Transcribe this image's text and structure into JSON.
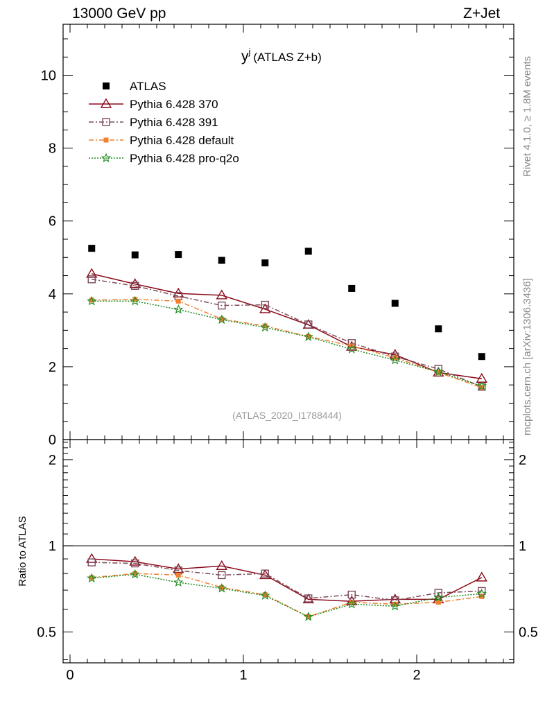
{
  "header": {
    "left": "13000 GeV pp",
    "right": "Z+Jet"
  },
  "side_labels": {
    "rivet": "Rivet 4.1.0, ≥ 1.8M events",
    "mcplots": "mcplots.cern.ch [arXiv:1306.3436]"
  },
  "chart_data": [
    {
      "type": "scatter",
      "panel": "main",
      "title_main": "y",
      "title_sup": "j",
      "title_rest": "(ATLAS Z+b)",
      "watermark": "(ATLAS_2020_I1788444)",
      "xlim": [
        -0.04,
        2.56
      ],
      "ylim": [
        0,
        11.4
      ],
      "yticks": [
        0,
        2,
        4,
        6,
        8,
        10
      ],
      "ytick_labels": [
        "0",
        "2",
        "4",
        "6",
        "8",
        "10"
      ],
      "x": [
        0.125,
        0.375,
        0.625,
        0.875,
        1.125,
        1.375,
        1.625,
        1.875,
        2.125,
        2.375
      ],
      "series": [
        {
          "name": "ATLAS",
          "color": "#000000",
          "marker": "filled-square",
          "line": "none",
          "values": [
            5.25,
            5.07,
            5.08,
            4.92,
            4.85,
            5.17,
            4.15,
            3.74,
            3.04,
            2.28
          ]
        },
        {
          "name": "Pythia 6.428 370",
          "color": "#8b0a1a",
          "marker": "open-triangle",
          "line": "solid",
          "values": [
            4.55,
            4.27,
            4.01,
            3.96,
            3.58,
            3.15,
            2.55,
            2.33,
            1.84,
            1.67
          ]
        },
        {
          "name": "Pythia 6.428 391",
          "color": "#7a4a5a",
          "marker": "open-square",
          "line": "dashdot",
          "values": [
            4.4,
            4.22,
            3.94,
            3.68,
            3.7,
            3.16,
            2.65,
            2.28,
            1.94,
            1.45
          ]
        },
        {
          "name": "Pythia 6.428 default",
          "color": "#f07f30",
          "marker": "filled-square",
          "line": "dashdot",
          "values": [
            3.83,
            3.85,
            3.8,
            3.31,
            3.12,
            2.83,
            2.57,
            2.25,
            1.84,
            1.43
          ]
        },
        {
          "name": "Pythia 6.428 pro-q2o",
          "color": "#1f8a1f",
          "marker": "open-star",
          "line": "dotted",
          "values": [
            3.8,
            3.8,
            3.57,
            3.29,
            3.08,
            2.82,
            2.48,
            2.18,
            1.86,
            1.47
          ]
        }
      ]
    },
    {
      "type": "scatter",
      "panel": "ratio",
      "ylabel": "Ratio to ATLAS",
      "xlim": [
        -0.04,
        2.56
      ],
      "ylim": [
        0.39,
        2.35
      ],
      "log_y": true,
      "yticks": [
        0.5,
        1,
        2
      ],
      "ytick_labels": [
        "0.5",
        "1",
        "2"
      ],
      "xticks": [
        0,
        1,
        2
      ],
      "xtick_labels": [
        "0",
        "1",
        "2"
      ],
      "x": [
        0.125,
        0.375,
        0.625,
        0.875,
        1.125,
        1.375,
        1.625,
        1.875,
        2.125,
        2.375
      ],
      "series": [
        {
          "name": "Pythia 6.428 370",
          "color": "#8b0a1a",
          "marker": "open-triangle",
          "line": "solid",
          "values": [
            0.9,
            0.88,
            0.83,
            0.85,
            0.79,
            0.65,
            0.64,
            0.65,
            0.65,
            0.775
          ]
        },
        {
          "name": "Pythia 6.428 391",
          "color": "#7a4a5a",
          "marker": "open-square",
          "line": "dashdot",
          "values": [
            0.875,
            0.868,
            0.82,
            0.79,
            0.8,
            0.655,
            0.675,
            0.645,
            0.685,
            0.695
          ]
        },
        {
          "name": "Pythia 6.428 default",
          "color": "#f07f30",
          "marker": "filled-square",
          "line": "dashdot",
          "values": [
            0.775,
            0.8,
            0.79,
            0.715,
            0.675,
            0.565,
            0.635,
            0.625,
            0.635,
            0.665
          ]
        },
        {
          "name": "Pythia 6.428 pro-q2o",
          "color": "#1f8a1f",
          "marker": "open-star",
          "line": "dotted",
          "values": [
            0.77,
            0.795,
            0.745,
            0.71,
            0.67,
            0.565,
            0.625,
            0.615,
            0.66,
            0.68
          ]
        }
      ]
    }
  ]
}
